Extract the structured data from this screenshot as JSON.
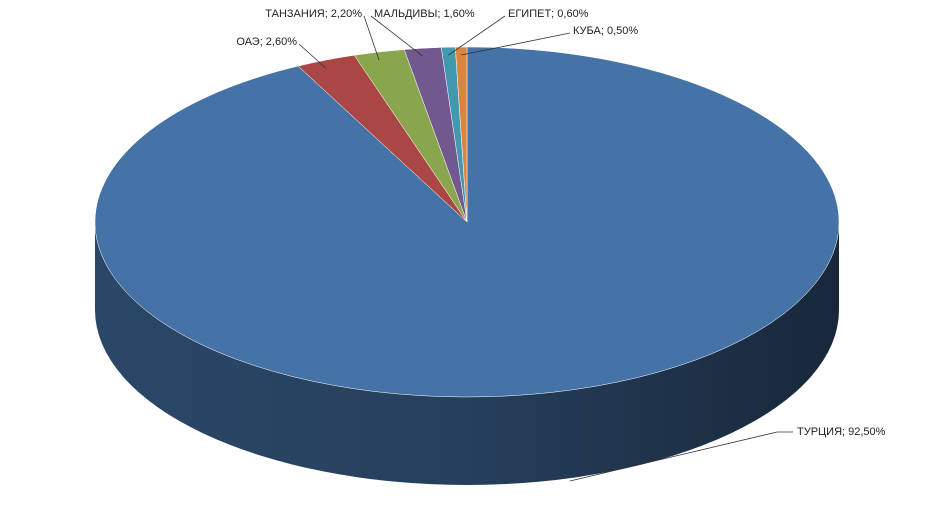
{
  "chart_data": {
    "type": "pie",
    "values": [
      92.5,
      2.6,
      2.2,
      1.6,
      0.6,
      0.5
    ],
    "value_labels": [
      "ТУРЦИЯ; 92,50%",
      "ОАЭ; 2,60%",
      "ТАНЗАНИЯ; 2,20%",
      "МАЛЬДИВЫ; 1,60%",
      "ЕГИПЕТ; 0,60%",
      "КУБА; 0,50%"
    ],
    "colors": [
      "#4572a7",
      "#aa4643",
      "#89a54e",
      "#71588f",
      "#4198af",
      "#db843d"
    ]
  }
}
